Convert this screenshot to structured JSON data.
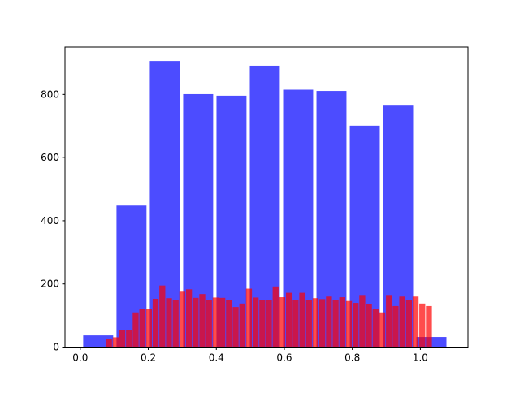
{
  "chart_data": {
    "type": "bar",
    "title": "",
    "xlabel": "",
    "ylabel": "",
    "xlim": [
      -0.045,
      1.14
    ],
    "ylim": [
      0,
      950
    ],
    "grid": false,
    "x_ticks": [
      0.0,
      0.2,
      0.4,
      0.6,
      0.8,
      1.0
    ],
    "x_tick_labels": [
      "0.0",
      "0.2",
      "0.4",
      "0.6",
      "0.8",
      "1.0"
    ],
    "y_ticks": [
      0,
      200,
      400,
      600,
      800
    ],
    "y_tick_labels": [
      "0",
      "200",
      "400",
      "600",
      "800"
    ],
    "series": [
      {
        "color": "#0000ff",
        "opacity": 0.7,
        "bar_width": 0.0882,
        "x": [
          0.0526,
          0.1506,
          0.2486,
          0.3466,
          0.4446,
          0.5426,
          0.6406,
          0.7386,
          0.8366,
          0.9346,
          1.0326
        ],
        "values": [
          37,
          448,
          906,
          801,
          796,
          891,
          815,
          811,
          701,
          767,
          32
        ]
      },
      {
        "color": "#ff0000",
        "opacity": 0.7,
        "bar_width": 0.0175,
        "x": [
          0.0844,
          0.104,
          0.1236,
          0.1432,
          0.1628,
          0.1824,
          0.202,
          0.2216,
          0.2412,
          0.2608,
          0.2804,
          0.3,
          0.3196,
          0.3392,
          0.3588,
          0.3784,
          0.398,
          0.4176,
          0.4372,
          0.4568,
          0.4764,
          0.496,
          0.5156,
          0.5352,
          0.5548,
          0.5744,
          0.594,
          0.6136,
          0.6332,
          0.6528,
          0.6724,
          0.692,
          0.7116,
          0.7312,
          0.7508,
          0.7704,
          0.79,
          0.8096,
          0.8292,
          0.8488,
          0.8684,
          0.888,
          0.9076,
          0.9272,
          0.9468,
          0.9664,
          0.986,
          1.0056,
          1.0252
        ],
        "values": [
          27,
          31,
          54,
          55,
          110,
          122,
          120,
          153,
          195,
          155,
          150,
          178,
          183,
          156,
          168,
          148,
          157,
          156,
          148,
          127,
          138,
          185,
          157,
          148,
          148,
          192,
          158,
          172,
          148,
          172,
          150,
          155,
          152,
          160,
          149,
          158,
          146,
          140,
          165,
          137,
          120,
          110,
          165,
          130,
          160,
          148,
          160,
          138,
          130
        ]
      }
    ]
  }
}
